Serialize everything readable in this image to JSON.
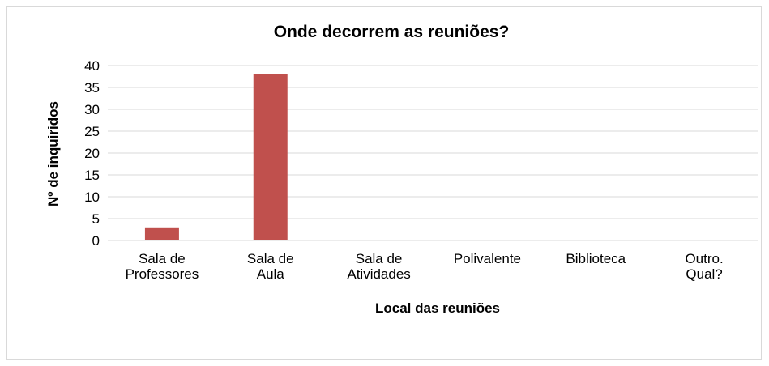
{
  "chart_data": {
    "type": "bar",
    "title": "Onde decorrem as reuniões?",
    "xlabel": "Local das reuniões",
    "ylabel": "Nº de inquiridos",
    "categories": [
      [
        "Sala de",
        "Professores"
      ],
      [
        "Sala de",
        "Aula"
      ],
      [
        "Sala de",
        "Atividades"
      ],
      [
        "Polivalente"
      ],
      [
        "Biblioteca"
      ],
      [
        "Outro.",
        "Qual?"
      ]
    ],
    "values": [
      3,
      38,
      0,
      0,
      0,
      0
    ],
    "ylim": [
      0,
      40
    ],
    "yticks": [
      "0",
      "5",
      "10",
      "15",
      "20",
      "25",
      "30",
      "35",
      "40"
    ],
    "grid": true,
    "legend": "none",
    "bar_color": "#c0504d",
    "grid_color": "#d9d9d9"
  }
}
